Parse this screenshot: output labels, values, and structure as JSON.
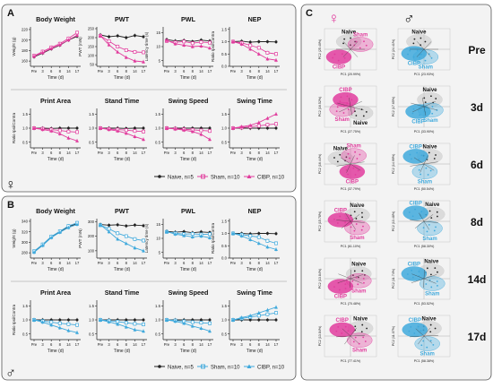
{
  "figure": {
    "panel_a_letter": "A",
    "panel_b_letter": "B",
    "panel_c_letter": "C",
    "female_symbol": "♀",
    "male_symbol": "♂"
  },
  "colors": {
    "female_accent": "#e13c9d",
    "male_accent": "#3fa9dc",
    "naive": "#222222",
    "panel_bg": "#f3f3f3"
  },
  "time_ticks": [
    "Pre",
    "3",
    "6",
    "8",
    "14",
    "17"
  ],
  "legend_a": {
    "naive": "Naive, n=5",
    "sham": "Sham, n=10",
    "cibp": "CIBP, n=10"
  },
  "legend_b": {
    "naive": "Naive, n=5",
    "sham": "Sham, n=10",
    "cibp": "CIBP, n=10"
  },
  "chart_data": [
    {
      "type": "line",
      "panel": "A",
      "title": "Body Weight",
      "xlabel": "Time (d)",
      "ylabel": "Weight (g)",
      "yticks": [
        "160",
        "180",
        "200",
        "220"
      ],
      "ylim": [
        150,
        225
      ],
      "series": [
        {
          "name": "Naive, n=5",
          "values": [
            168,
            175,
            183,
            190,
            200,
            207
          ]
        },
        {
          "name": "Sham, n=10",
          "values": [
            170,
            178,
            186,
            193,
            203,
            214
          ]
        },
        {
          "name": "CIBP, n=10",
          "values": [
            169,
            176,
            184,
            191,
            200,
            209
          ]
        }
      ]
    },
    {
      "type": "line",
      "panel": "A",
      "title": "PWT",
      "xlabel": "Time (d)",
      "ylabel": "PWT (mN)",
      "yticks": [
        "50",
        "100",
        "150",
        "200",
        "250"
      ],
      "ylim": [
        40,
        260
      ],
      "series": [
        {
          "name": "Naive, n=5",
          "values": [
            215,
            205,
            210,
            200,
            212,
            205
          ]
        },
        {
          "name": "Sham, n=10",
          "values": [
            210,
            180,
            150,
            130,
            120,
            118
          ]
        },
        {
          "name": "CIBP, n=10",
          "values": [
            210,
            160,
            120,
            90,
            70,
            65
          ]
        }
      ]
    },
    {
      "type": "line",
      "panel": "A",
      "title": "PWL",
      "xlabel": "Time (d)",
      "ylabel": "Latency time (s)",
      "yticks": [
        "5",
        "10",
        "15"
      ],
      "ylim": [
        3,
        17
      ],
      "series": [
        {
          "name": "Naive, n=5",
          "values": [
            12.5,
            12,
            12.2,
            11.8,
            12.3,
            12
          ]
        },
        {
          "name": "Sham, n=10",
          "values": [
            12,
            11.5,
            11.8,
            11.2,
            11.6,
            11.4
          ]
        },
        {
          "name": "CIBP, n=10",
          "values": [
            12.2,
            11,
            10.5,
            10,
            10.2,
            9.5
          ]
        }
      ]
    },
    {
      "type": "line",
      "panel": "A",
      "title": "NEP",
      "xlabel": "Time (d)",
      "ylabel": "Ratio Ipsi/Contra",
      "yticks": [
        "0.0",
        "0.5",
        "1.0",
        "1.5"
      ],
      "ylim": [
        0,
        1.6
      ],
      "series": [
        {
          "name": "Naive, n=5",
          "values": [
            1,
            1.02,
            0.98,
            1,
            1,
            0.99
          ]
        },
        {
          "name": "Sham, n=10",
          "values": [
            1,
            0.95,
            0.85,
            0.75,
            0.55,
            0.5
          ]
        },
        {
          "name": "CIBP, n=10",
          "values": [
            1,
            0.9,
            0.7,
            0.5,
            0.3,
            0.25
          ]
        }
      ]
    },
    {
      "type": "line",
      "panel": "A",
      "title": "Print Area",
      "xlabel": "Time (d)",
      "ylabel": "Ratio Ipsi/Contra",
      "yticks": [
        "0.5",
        "1.0",
        "1.5"
      ],
      "ylim": [
        0.3,
        1.7
      ],
      "series": [
        {
          "name": "Naive, n=5",
          "values": [
            1,
            1,
            0.99,
            1,
            1,
            1
          ]
        },
        {
          "name": "Sham, n=10",
          "values": [
            1,
            0.98,
            0.95,
            0.92,
            0.88,
            0.86
          ]
        },
        {
          "name": "CIBP, n=10",
          "values": [
            1,
            0.95,
            0.9,
            0.8,
            0.65,
            0.55
          ]
        }
      ]
    },
    {
      "type": "line",
      "panel": "A",
      "title": "Stand Time",
      "xlabel": "Time (d)",
      "ylabel": "",
      "yticks": [
        "0.5",
        "1.0",
        "1.5"
      ],
      "ylim": [
        0.3,
        1.7
      ],
      "series": [
        {
          "name": "Naive, n=5",
          "values": [
            1,
            1,
            1,
            0.99,
            1,
            1
          ]
        },
        {
          "name": "Sham, n=10",
          "values": [
            1,
            0.97,
            0.95,
            0.93,
            0.9,
            0.88
          ]
        },
        {
          "name": "CIBP, n=10",
          "values": [
            1,
            0.95,
            0.9,
            0.82,
            0.7,
            0.6
          ]
        }
      ]
    },
    {
      "type": "line",
      "panel": "A",
      "title": "Swing Speed",
      "xlabel": "Time (d)",
      "ylabel": "",
      "yticks": [
        "0.5",
        "1.0",
        "1.5"
      ],
      "ylim": [
        0.3,
        1.7
      ],
      "series": [
        {
          "name": "Naive, n=5",
          "values": [
            1,
            1,
            1,
            1,
            1,
            1
          ]
        },
        {
          "name": "Sham, n=10",
          "values": [
            1,
            0.98,
            0.96,
            0.94,
            0.92,
            0.9
          ]
        },
        {
          "name": "CIBP, n=10",
          "values": [
            1,
            0.97,
            0.93,
            0.88,
            0.78,
            0.6
          ]
        }
      ]
    },
    {
      "type": "line",
      "panel": "A",
      "title": "Swing Time",
      "xlabel": "Time (d)",
      "ylabel": "",
      "yticks": [
        "0.5",
        "1.0",
        "1.5"
      ],
      "ylim": [
        0.3,
        1.7
      ],
      "series": [
        {
          "name": "Naive, n=5",
          "values": [
            1,
            1,
            1,
            1,
            1,
            1
          ]
        },
        {
          "name": "Sham, n=10",
          "values": [
            1,
            1.02,
            1.05,
            1.08,
            1.12,
            1.15
          ]
        },
        {
          "name": "CIBP, n=10",
          "values": [
            1,
            1.05,
            1.1,
            1.2,
            1.35,
            1.5
          ]
        }
      ]
    },
    {
      "type": "line",
      "panel": "B",
      "title": "Body Weight",
      "xlabel": "Time (d)",
      "ylabel": "Weight (g)",
      "yticks": [
        "280",
        "300",
        "320",
        "340"
      ],
      "ylim": [
        270,
        345
      ],
      "series": [
        {
          "name": "Naive, n=5",
          "values": [
            282,
            295,
            310,
            320,
            330,
            335
          ]
        },
        {
          "name": "Sham, n=10",
          "values": [
            283,
            296,
            311,
            321,
            331,
            337
          ]
        },
        {
          "name": "CIBP, n=10",
          "values": [
            281,
            294,
            309,
            319,
            328,
            334
          ]
        }
      ]
    },
    {
      "type": "line",
      "panel": "B",
      "title": "PWT",
      "xlabel": "Time (d)",
      "ylabel": "PWT (mN)",
      "yticks": [
        "100",
        "200",
        "300"
      ],
      "ylim": [
        50,
        320
      ],
      "series": [
        {
          "name": "Naive, n=5",
          "values": [
            280,
            275,
            278,
            270,
            276,
            272
          ]
        },
        {
          "name": "Sham, n=10",
          "values": [
            275,
            250,
            220,
            200,
            180,
            170
          ]
        },
        {
          "name": "CIBP, n=10",
          "values": [
            278,
            230,
            180,
            150,
            120,
            100
          ]
        }
      ]
    },
    {
      "type": "line",
      "panel": "B",
      "title": "PWL",
      "xlabel": "Time (d)",
      "ylabel": "Latency time (s)",
      "yticks": [
        "5",
        "10",
        "15"
      ],
      "ylim": [
        3,
        17
      ],
      "series": [
        {
          "name": "Naive, n=5",
          "values": [
            12.5,
            12.2,
            12.4,
            12,
            12.3,
            12.1
          ]
        },
        {
          "name": "Sham, n=10",
          "values": [
            12.3,
            11.8,
            11.5,
            11.6,
            11.4,
            11.5
          ]
        },
        {
          "name": "CIBP, n=10",
          "values": [
            12.4,
            11.5,
            11,
            10.5,
            10.8,
            10.2
          ]
        }
      ]
    },
    {
      "type": "line",
      "panel": "B",
      "title": "NEP",
      "xlabel": "Time (d)",
      "ylabel": "Ratio Ipsi/Contra",
      "yticks": [
        "0.0",
        "0.5",
        "1.0",
        "1.5"
      ],
      "ylim": [
        0,
        1.6
      ],
      "series": [
        {
          "name": "Naive, n=5",
          "values": [
            1,
            1,
            0.98,
            1,
            1,
            0.99
          ]
        },
        {
          "name": "Sham, n=10",
          "values": [
            1,
            0.95,
            0.9,
            0.85,
            0.7,
            0.6
          ]
        },
        {
          "name": "CIBP, n=10",
          "values": [
            1,
            0.9,
            0.75,
            0.6,
            0.45,
            0.35
          ]
        }
      ]
    },
    {
      "type": "line",
      "panel": "B",
      "title": "Print Area",
      "xlabel": "Time (d)",
      "ylabel": "Ratio Ipsi/Contra",
      "yticks": [
        "0.5",
        "1.0",
        "1.5"
      ],
      "ylim": [
        0.3,
        1.7
      ],
      "series": [
        {
          "name": "Naive, n=5",
          "values": [
            1,
            1,
            1,
            1,
            1,
            1
          ]
        },
        {
          "name": "Sham, n=10",
          "values": [
            1,
            0.96,
            0.92,
            0.88,
            0.85,
            0.82
          ]
        },
        {
          "name": "CIBP, n=10",
          "values": [
            1,
            0.92,
            0.82,
            0.72,
            0.62,
            0.55
          ]
        }
      ]
    },
    {
      "type": "line",
      "panel": "B",
      "title": "Stand Time",
      "xlabel": "Time (d)",
      "ylabel": "",
      "yticks": [
        "0.5",
        "1.0",
        "1.5"
      ],
      "ylim": [
        0.3,
        1.7
      ],
      "series": [
        {
          "name": "Naive, n=5",
          "values": [
            1,
            1,
            1,
            1,
            1,
            1
          ]
        },
        {
          "name": "Sham, n=10",
          "values": [
            1,
            0.97,
            0.94,
            0.9,
            0.86,
            0.84
          ]
        },
        {
          "name": "CIBP, n=10",
          "values": [
            1,
            0.93,
            0.85,
            0.75,
            0.65,
            0.6
          ]
        }
      ]
    },
    {
      "type": "line",
      "panel": "B",
      "title": "Swing Speed",
      "xlabel": "Time (d)",
      "ylabel": "",
      "yticks": [
        "0.5",
        "1.0",
        "1.5"
      ],
      "ylim": [
        0.3,
        1.7
      ],
      "series": [
        {
          "name": "Naive, n=5",
          "values": [
            1,
            1,
            1,
            1,
            1,
            1
          ]
        },
        {
          "name": "Sham, n=10",
          "values": [
            1,
            0.98,
            0.95,
            0.92,
            0.9,
            0.88
          ]
        },
        {
          "name": "CIBP, n=10",
          "values": [
            1,
            0.95,
            0.88,
            0.78,
            0.7,
            0.6
          ]
        }
      ]
    },
    {
      "type": "line",
      "panel": "B",
      "title": "Swing Time",
      "xlabel": "Time (d)",
      "ylabel": "",
      "yticks": [
        "0.5",
        "1.0",
        "1.5"
      ],
      "ylim": [
        0.3,
        1.7
      ],
      "series": [
        {
          "name": "Naive, n=5",
          "values": [
            1,
            1,
            1,
            1,
            1,
            1
          ]
        },
        {
          "name": "Sham, n=10",
          "values": [
            1,
            1.05,
            1.1,
            1.15,
            1.2,
            1.25
          ]
        },
        {
          "name": "CIBP, n=10",
          "values": [
            1,
            1.08,
            1.15,
            1.25,
            1.35,
            1.45
          ]
        }
      ]
    }
  ],
  "pca": {
    "row_labels": [
      "Pre",
      "3d",
      "6d",
      "8d",
      "14d",
      "17d"
    ],
    "group_labels": {
      "naive": "Naive",
      "sham": "Sham",
      "cibp": "CIBP"
    },
    "female": [
      {
        "ylabel": "PC2 (25.40%)",
        "xlabel": "PC1 (20.99%)",
        "naive": [
          -0.1,
          0.55
        ],
        "sham": [
          0.6,
          0.35
        ],
        "cibp": [
          -0.7,
          -0.55
        ]
      },
      {
        "ylabel": "PC2 (16.52%)",
        "xlabel": "PC1 (27.75%)",
        "naive": [
          0.6,
          -0.45
        ],
        "sham": [
          -0.5,
          -0.2
        ],
        "cibp": [
          -0.3,
          0.5
        ]
      },
      {
        "ylabel": "PC2 (16.44%)",
        "xlabel": "PC1 (37.79%)",
        "naive": [
          -0.6,
          0.4
        ],
        "sham": [
          0.2,
          0.6
        ],
        "cibp": [
          0.1,
          -0.55
        ]
      },
      {
        "ylabel": "PC2 (15.78%)",
        "xlabel": "PC1 (61.10%)",
        "naive": [
          0.4,
          0.45
        ],
        "sham": [
          0.4,
          -0.45
        ],
        "cibp": [
          -0.6,
          0.1
        ]
      },
      {
        "ylabel": "PC2 (13.84%)",
        "xlabel": "PC1 (70.48%)",
        "naive": [
          0.5,
          0.35
        ],
        "sham": [
          0.5,
          -0.15
        ],
        "cibp": [
          -0.6,
          -0.55
        ]
      },
      {
        "ylabel": "PC2 (13.84%)",
        "xlabel": "PC1 (77.41%)",
        "naive": [
          0.6,
          0.55
        ],
        "sham": [
          0.55,
          -0.3
        ],
        "cibp": [
          -0.5,
          0.45
        ]
      }
    ],
    "male": [
      {
        "ylabel": "PC2 (24.41%)",
        "xlabel": "PC1 (23.93%)",
        "naive": [
          -0.3,
          0.55
        ],
        "sham": [
          0.1,
          -0.55
        ],
        "cibp": [
          -0.6,
          -0.3
        ]
      },
      {
        "ylabel": "PC2 (17.65%)",
        "xlabel": "PC1 (33.90%)",
        "naive": [
          0.35,
          0.5
        ],
        "sham": [
          0.4,
          -0.25
        ],
        "cibp": [
          -0.35,
          -0.35
        ]
      },
      {
        "ylabel": "PC2 (14.99%)",
        "xlabel": "PC1 (50.54%)",
        "naive": [
          0.35,
          0.55
        ],
        "sham": [
          0.05,
          -0.55
        ],
        "cibp": [
          -0.5,
          0.55
        ]
      },
      {
        "ylabel": "PC2 (13.48%)",
        "xlabel": "PC1 (58.30%)",
        "naive": [
          0.5,
          0.5
        ],
        "sham": [
          0.35,
          -0.5
        ],
        "cibp": [
          -0.5,
          0.6
        ]
      },
      {
        "ylabel": "PC2 (11.74%)",
        "xlabel": "PC1 (53.52%)",
        "naive": [
          0.45,
          0.55
        ],
        "sham": [
          0.5,
          -0.35
        ],
        "cibp": [
          -0.6,
          0.35
        ]
      },
      {
        "ylabel": "PC2 (11.07%)",
        "xlabel": "PC1 (58.38%)",
        "naive": [
          0.3,
          0.55
        ],
        "sham": [
          0.2,
          -0.55
        ],
        "cibp": [
          -0.55,
          0.45
        ]
      }
    ]
  }
}
